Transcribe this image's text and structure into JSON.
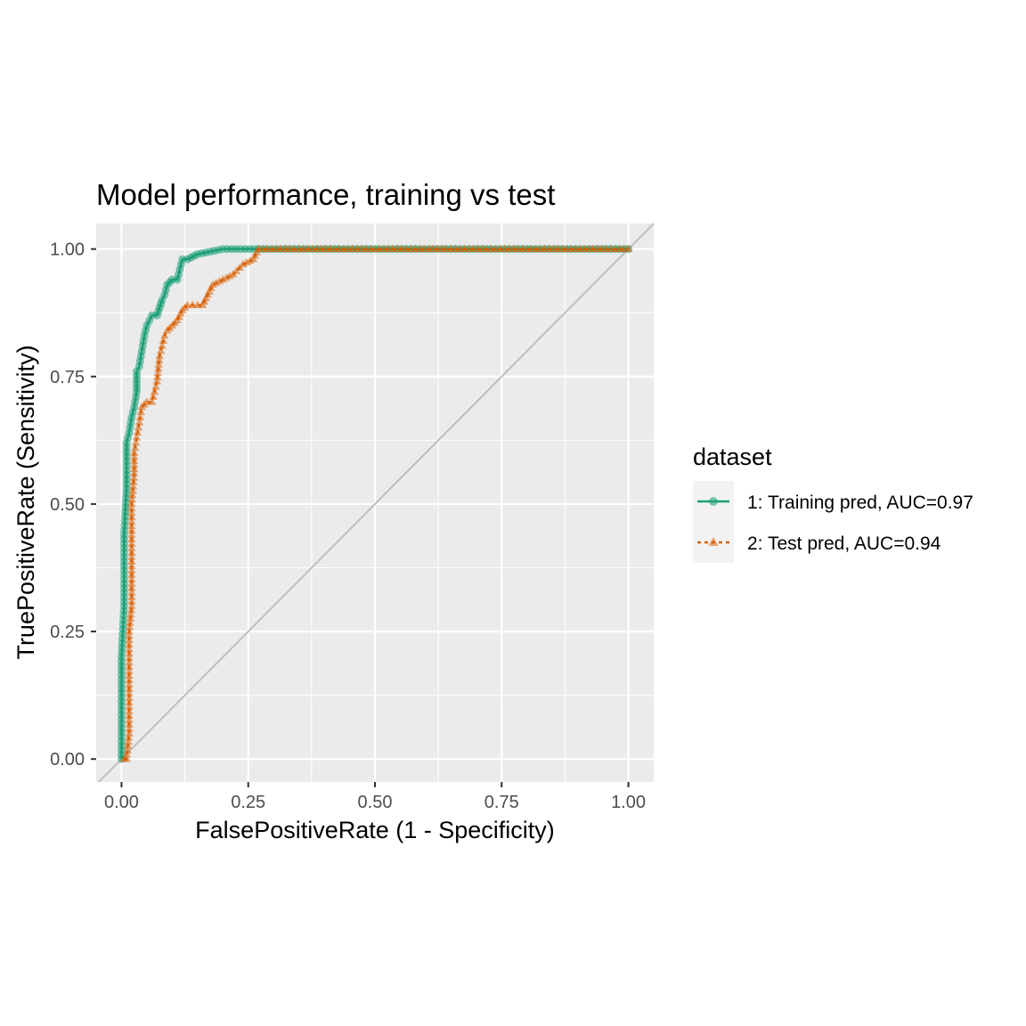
{
  "chart_data": {
    "type": "line",
    "title": "Model performance, training vs test",
    "xlabel": "FalsePositiveRate (1 - Specificity)",
    "ylabel": "TruePositiveRate (Sensitivity)",
    "xlim": [
      -0.05,
      1.05
    ],
    "ylim": [
      -0.045,
      1.05
    ],
    "xticks": [
      0,
      0.25,
      0.5,
      0.75,
      1
    ],
    "xtick_labels": [
      "0.00",
      "0.25",
      "0.50",
      "0.75",
      "1.00"
    ],
    "yticks": [
      0,
      0.25,
      0.5,
      0.75,
      1
    ],
    "ytick_labels": [
      "0.00",
      "0.25",
      "0.50",
      "0.75",
      "1.00"
    ],
    "grid": true,
    "reference_line": "diagonal y = x",
    "legend": {
      "title": "dataset",
      "position": "right",
      "entries": [
        "1: Training pred, AUC=0.97",
        "2: Test pred, AUC=0.94"
      ]
    },
    "series": [
      {
        "name": "1: Training pred, AUC=0.97",
        "color": "#1b9e77",
        "marker": "circle",
        "line_style": "solid",
        "x": [
          0.0,
          0.0,
          0.005,
          0.005,
          0.01,
          0.01,
          0.015,
          0.02,
          0.025,
          0.03,
          0.03,
          0.035,
          0.04,
          0.045,
          0.05,
          0.055,
          0.06,
          0.07,
          0.08,
          0.085,
          0.09,
          0.1,
          0.11,
          0.115,
          0.12,
          0.13,
          0.15,
          0.2,
          0.27,
          0.35,
          0.5,
          0.65,
          0.8,
          1.0
        ],
        "y": [
          0.0,
          0.2,
          0.3,
          0.44,
          0.53,
          0.62,
          0.64,
          0.67,
          0.69,
          0.72,
          0.76,
          0.77,
          0.8,
          0.83,
          0.85,
          0.86,
          0.87,
          0.87,
          0.9,
          0.91,
          0.93,
          0.94,
          0.94,
          0.96,
          0.98,
          0.98,
          0.99,
          1.0,
          1.0,
          1.0,
          1.0,
          1.0,
          1.0,
          1.0
        ]
      },
      {
        "name": "2: Test pred, AUC=0.94",
        "color": "#d95f02",
        "marker": "triangle",
        "line_style": "dashed",
        "x": [
          0.005,
          0.01,
          0.015,
          0.015,
          0.02,
          0.02,
          0.025,
          0.025,
          0.03,
          0.035,
          0.04,
          0.05,
          0.06,
          0.065,
          0.07,
          0.075,
          0.08,
          0.085,
          0.09,
          0.1,
          0.11,
          0.12,
          0.13,
          0.14,
          0.16,
          0.17,
          0.18,
          0.2,
          0.22,
          0.24,
          0.26,
          0.27,
          0.35,
          0.5,
          0.65,
          0.8,
          1.0
        ],
        "y": [
          0.0,
          0.0,
          0.05,
          0.25,
          0.3,
          0.5,
          0.56,
          0.6,
          0.63,
          0.66,
          0.69,
          0.7,
          0.7,
          0.72,
          0.74,
          0.79,
          0.81,
          0.83,
          0.84,
          0.85,
          0.86,
          0.88,
          0.89,
          0.89,
          0.89,
          0.91,
          0.93,
          0.94,
          0.95,
          0.97,
          0.98,
          1.0,
          1.0,
          1.0,
          1.0,
          1.0,
          1.0
        ]
      }
    ]
  }
}
